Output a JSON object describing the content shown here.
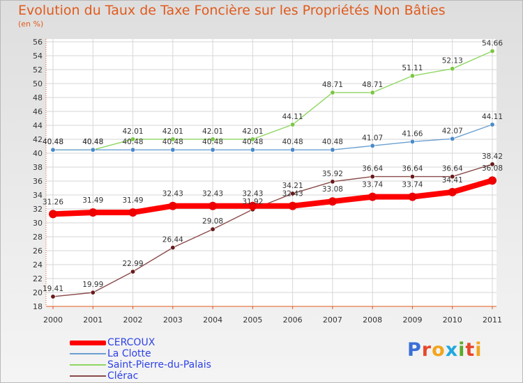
{
  "title": "Evolution du Taux de Taxe Foncière sur les Propriétés Non Bâties",
  "y_unit": "(en %)",
  "brand": "Proxiti",
  "colors": {
    "title": "#e05a1c",
    "axis": "#e05a1c",
    "legend_text": "#2d41e8"
  },
  "chart_data": {
    "type": "line",
    "title": "Evolution du Taux de Taxe Foncière sur les Propriétés Non Bâties",
    "ylabel": "(en %)",
    "xlabel": "",
    "ylim": [
      18,
      56
    ],
    "y_ticks": [
      18,
      20,
      22,
      24,
      26,
      28,
      30,
      32,
      34,
      36,
      38,
      40,
      42,
      44,
      46,
      48,
      50,
      52,
      54,
      56
    ],
    "categories": [
      "2000",
      "2001",
      "2002",
      "2003",
      "2004",
      "2005",
      "2006",
      "2007",
      "2008",
      "2009",
      "2010",
      "2011"
    ],
    "grid": true,
    "legend_position": "bottom-left",
    "series": [
      {
        "name": "Saint-Pierre-du-Palais",
        "color": "#8ed660",
        "dot": "#7cc643",
        "style": "thin",
        "values": [
          40.48,
          40.48,
          42.01,
          42.01,
          42.01,
          42.01,
          44.11,
          48.71,
          48.71,
          51.11,
          52.13,
          54.66
        ],
        "labels": [
          "40.48",
          "40.48",
          "42.01",
          "42.01",
          "42.01",
          "42.01",
          "44.11",
          "48.71",
          "48.71",
          "51.11",
          "52.13",
          "54.66"
        ]
      },
      {
        "name": "La Clotte",
        "color": "#6a9fd0",
        "dot": "#4a8ac8",
        "style": "thin",
        "values": [
          40.48,
          40.48,
          40.48,
          40.48,
          40.48,
          40.48,
          40.48,
          40.48,
          41.07,
          41.66,
          42.07,
          44.11
        ],
        "labels": [
          "40.48",
          "40.48",
          "40.48",
          "40.48",
          "40.48",
          "40.48",
          "40.48",
          "40.48",
          "41.07",
          "41.66",
          "42.07",
          "44.11"
        ]
      },
      {
        "name": "Clérac",
        "color": "#8a4a4a",
        "dot": "#6a1a1a",
        "style": "thin",
        "values": [
          19.41,
          19.99,
          22.99,
          26.44,
          29.08,
          31.92,
          34.21,
          35.92,
          36.64,
          36.64,
          36.64,
          38.42
        ],
        "labels": [
          "19.41",
          "19.99",
          "22.99",
          "26.44",
          "29.08",
          "31.92",
          "34.21",
          "35.92",
          "36.64",
          "36.64",
          "36.64",
          "38.42"
        ]
      },
      {
        "name": "CERCOUX",
        "color": "#ff0000",
        "dot": "#ee0000",
        "style": "thick",
        "values": [
          31.26,
          31.49,
          31.49,
          32.43,
          32.43,
          32.43,
          32.43,
          33.08,
          33.74,
          33.74,
          34.41,
          36.08
        ],
        "labels": [
          "31.26",
          "31.49",
          "31.49",
          "32.43",
          "32.43",
          "32.43",
          "32.43",
          "33.08",
          "33.74",
          "33.74",
          "34.41",
          "36.08"
        ]
      }
    ]
  }
}
